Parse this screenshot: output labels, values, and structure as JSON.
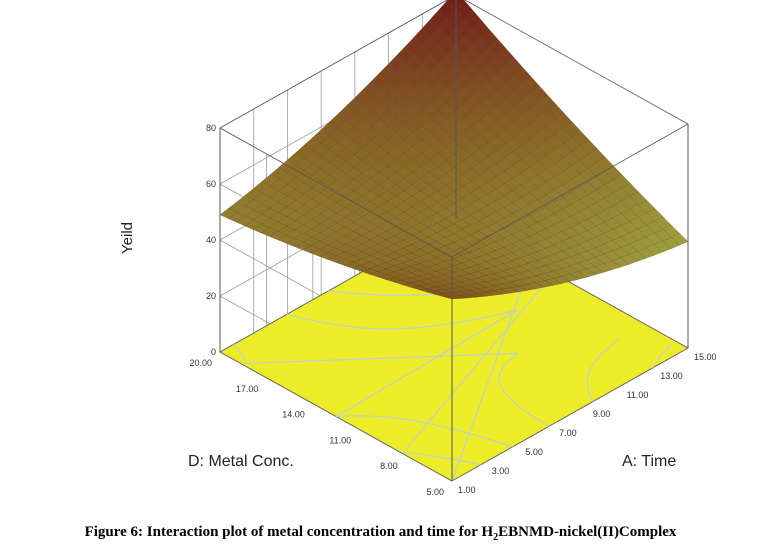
{
  "chart_data": {
    "type": "surface3d",
    "zlabel": "Yeild",
    "xlabel": "A: Time",
    "ylabel": "D: Metal Conc.",
    "xlim": [
      1,
      15
    ],
    "ylim": [
      5,
      20
    ],
    "zlim": [
      0,
      80
    ],
    "x_ticks": [
      "1.00",
      "3.00",
      "5.00",
      "7.00",
      "9.00",
      "11.00",
      "13.00",
      "15.00"
    ],
    "y_ticks": [
      "5.00",
      "8.00",
      "11.00",
      "14.00",
      "17.00",
      "20.00"
    ],
    "z_ticks": [
      "0",
      "20",
      "40",
      "60",
      "80"
    ],
    "max_flag": "81.587",
    "corner_values": [
      {
        "time": 1,
        "metal_conc": 5,
        "yield": 65
      },
      {
        "time": 15,
        "metal_conc": 5,
        "yield": 38
      },
      {
        "time": 1,
        "metal_conc": 20,
        "yield": 49
      },
      {
        "time": 15,
        "metal_conc": 20,
        "yield": 81.587
      }
    ],
    "colors": {
      "low": "#a8b84a",
      "high": "#6e1818",
      "floor": "#ecec28",
      "contour": "#bccfd8",
      "contour_hot": "#d03030"
    }
  },
  "caption": {
    "prefix": "Figure 6: Interaction plot of metal concentration and time for H",
    "sub": "2",
    "suffix": "EBNMD-nickel(II)Complex"
  }
}
